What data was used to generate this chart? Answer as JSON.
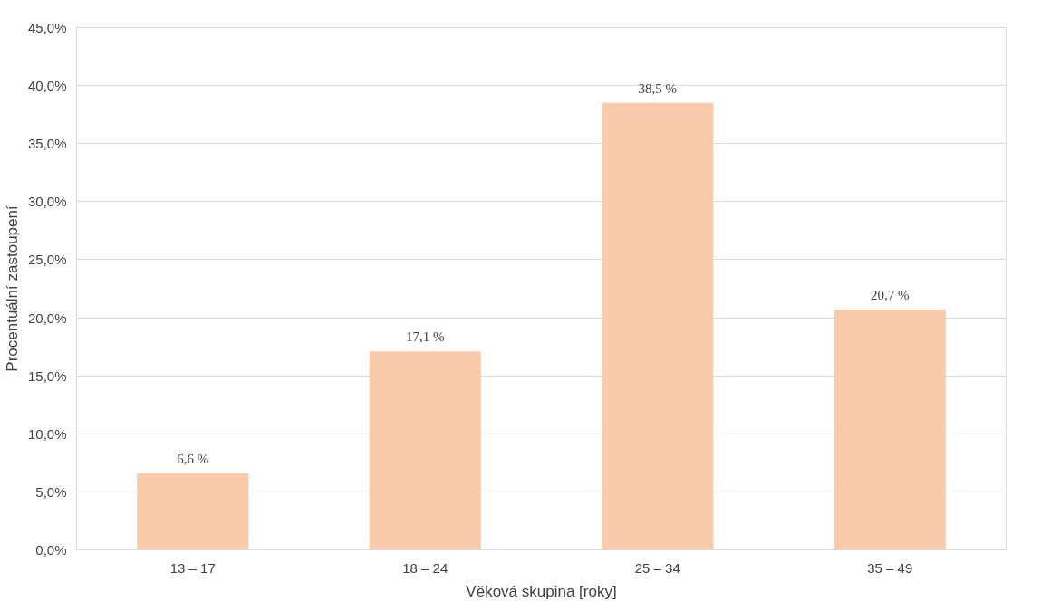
{
  "chart_data": {
    "type": "bar",
    "xlabel": "Věková skupina [roky]",
    "ylabel": "Procentuální zastoupení",
    "categories": [
      "13 – 17",
      "18 – 24",
      "25 – 34",
      "35 – 49"
    ],
    "values": [
      6.6,
      17.1,
      38.5,
      20.7
    ],
    "value_labels": [
      "6,6 %",
      "17,1 %",
      "38,5 %",
      "20,7 %"
    ],
    "color": "#f8cbad",
    "ylim": [
      0,
      45
    ],
    "yticks": [
      {
        "value": 0,
        "label": "0,0%"
      },
      {
        "value": 5,
        "label": "5,0%"
      },
      {
        "value": 10,
        "label": "10,0%"
      },
      {
        "value": 15,
        "label": "15,0%"
      },
      {
        "value": 20,
        "label": "20,0%"
      },
      {
        "value": 25,
        "label": "25,0%"
      },
      {
        "value": 30,
        "label": "30,0%"
      },
      {
        "value": 35,
        "label": "35,0%"
      },
      {
        "value": 40,
        "label": "40,0%"
      },
      {
        "value": 45,
        "label": "45,0%"
      }
    ],
    "grid": "y"
  }
}
